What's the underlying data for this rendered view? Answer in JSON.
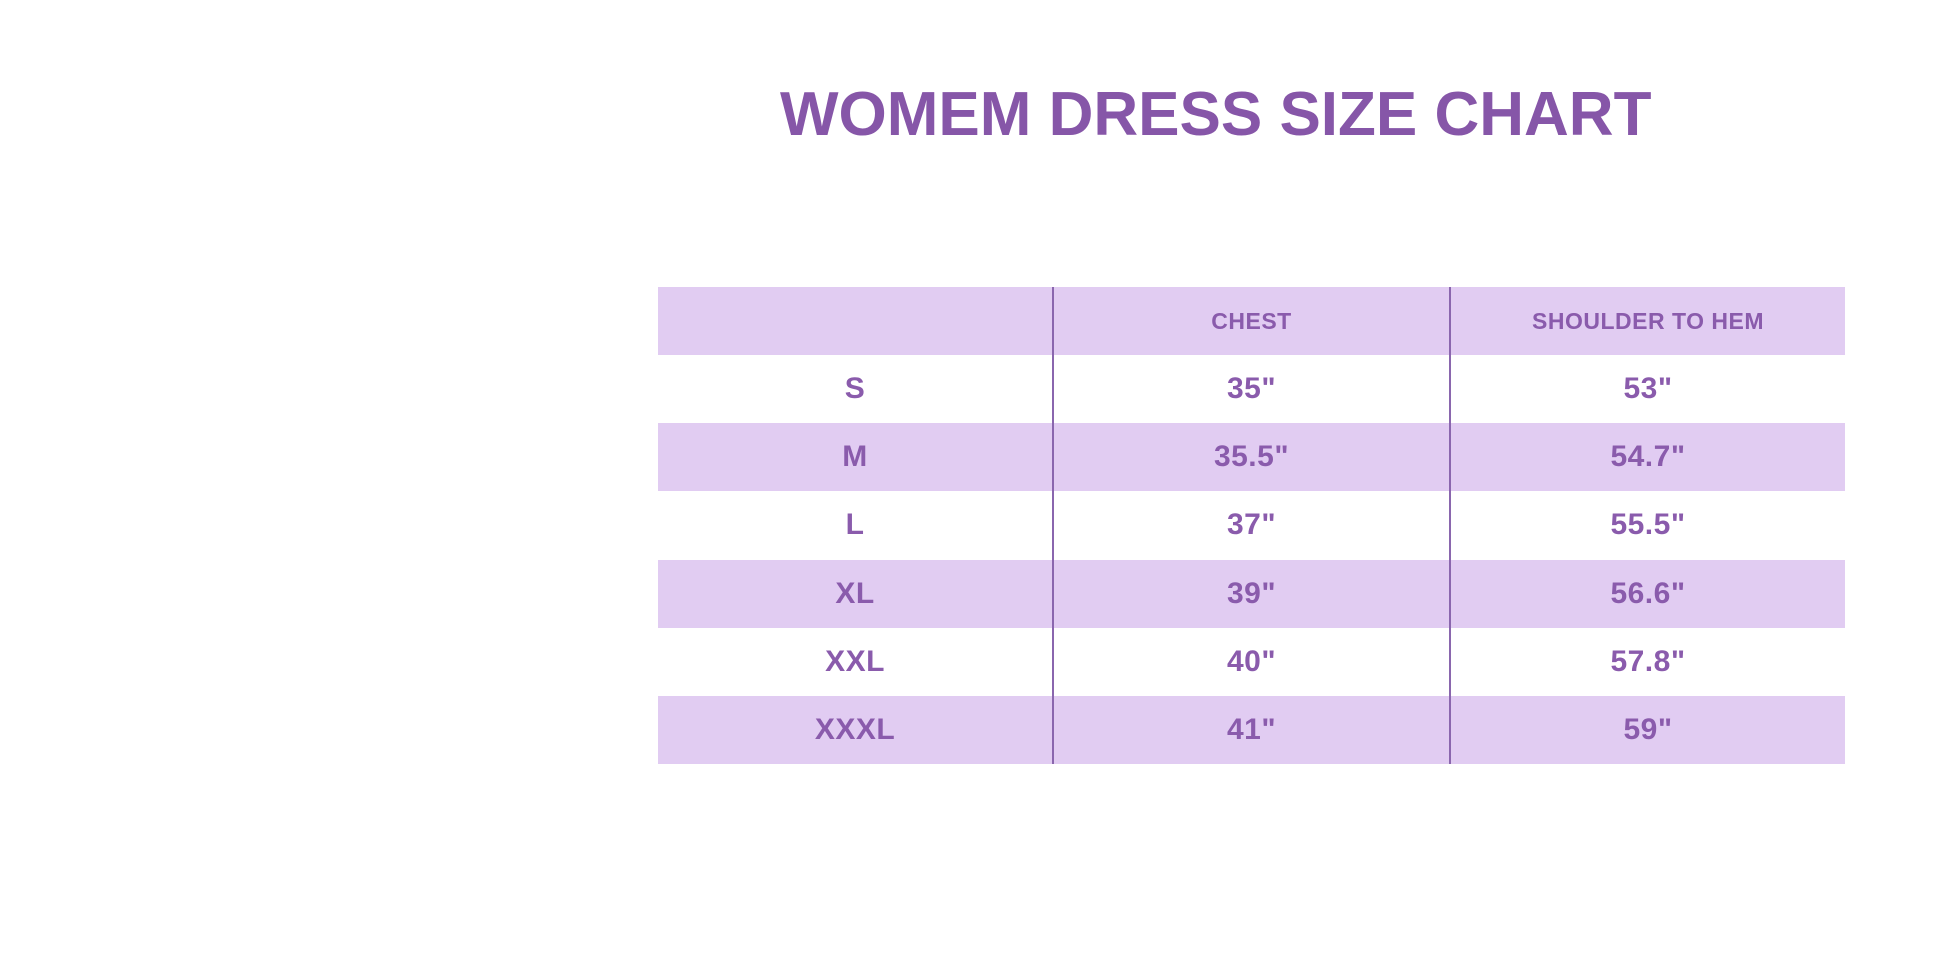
{
  "title": "WOMEM DRESS SIZE CHART",
  "table": {
    "columns": [
      "",
      "CHEST",
      "SHOULDER TO HEM"
    ],
    "rows": [
      [
        "S",
        "35\"",
        "53\""
      ],
      [
        "M",
        "35.5\"",
        "54.7\""
      ],
      [
        "L",
        "37\"",
        "55.5\""
      ],
      [
        "XL",
        "39\"",
        "56.6\""
      ],
      [
        "XXL",
        "40\"",
        "57.8\""
      ],
      [
        "XXXL",
        "41\"",
        "59\""
      ]
    ]
  },
  "colors": {
    "background": "#ffffff",
    "title_text": "#8656a8",
    "table_text": "#8a5bac",
    "row_fill": "#e1ccf2",
    "column_line": "#8a66ae"
  },
  "chart_data": {
    "type": "table",
    "title": "WOMEM DRESS SIZE CHART",
    "columns": [
      "",
      "CHEST",
      "SHOULDER TO HEM"
    ],
    "rows": [
      [
        "S",
        "35\"",
        "53\""
      ],
      [
        "M",
        "35.5\"",
        "54.7\""
      ],
      [
        "L",
        "37\"",
        "55.5\""
      ],
      [
        "XL",
        "39\"",
        "56.6\""
      ],
      [
        "XXL",
        "40\"",
        "57.8\""
      ],
      [
        "XXXL",
        "41\"",
        "59\""
      ]
    ]
  }
}
